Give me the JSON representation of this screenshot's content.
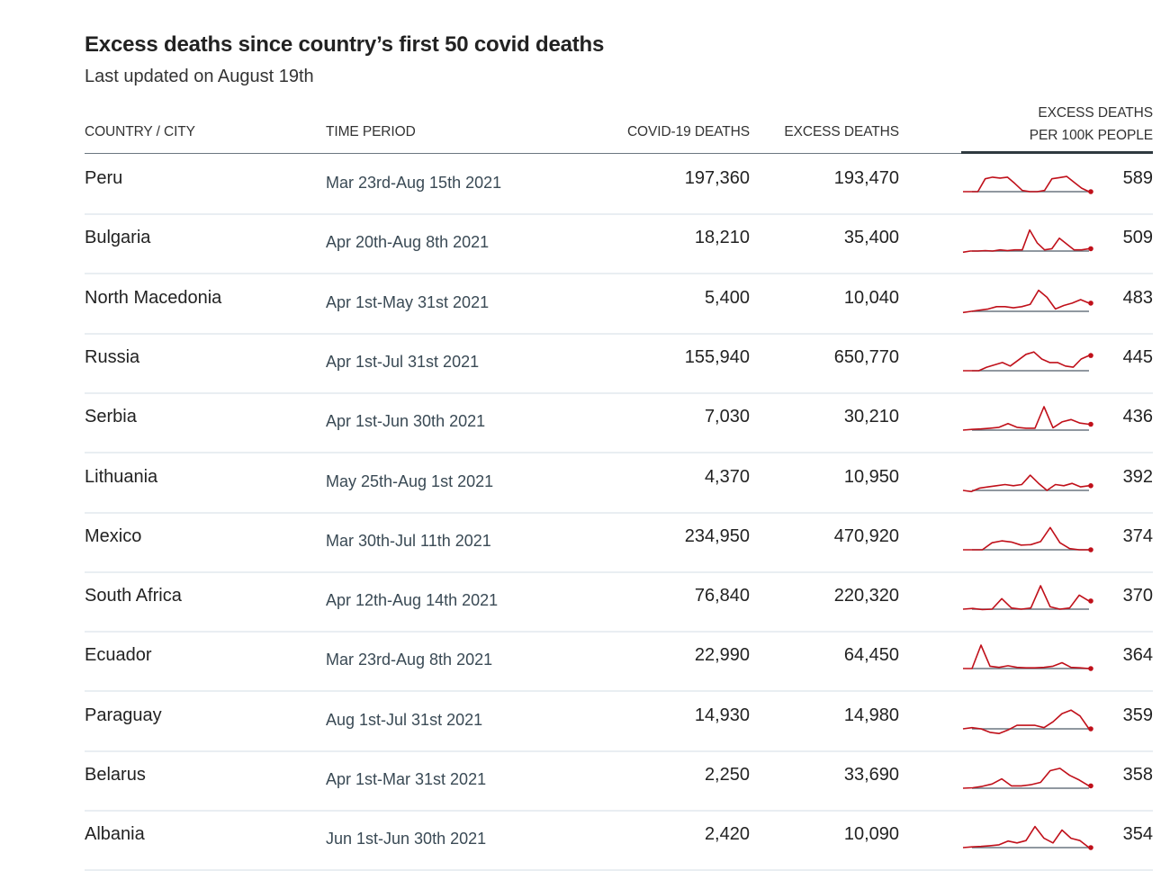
{
  "header": {
    "title": "Excess deaths since country’s first 50 covid deaths",
    "subtitle": "Last updated on August 19th"
  },
  "columns": {
    "country": "COUNTRY / CITY",
    "period": "TIME PERIOD",
    "covid": "COVID-19 DEATHS",
    "excess": "EXCESS DEATHS",
    "per100k_line1": "EXCESS DEATHS",
    "per100k_line2": "PER 100K PEOPLE"
  },
  "colors": {
    "line": "#c0101a",
    "baseline": "#6b7780",
    "rule": "#e9eef2"
  },
  "chart_data": {
    "type": "table",
    "title": "Excess deaths since country’s first 50 covid deaths",
    "subtitle": "Last updated on August 19th",
    "sorted_by": "excess_per_100k",
    "rows": [
      {
        "country": "Peru",
        "period": "Mar 23rd-Aug 15th 2021",
        "covid": "197,360",
        "excess": "193,470",
        "per100k": "589",
        "spark": [
          0,
          0,
          0,
          0.55,
          0.62,
          0.58,
          0.62,
          0.35,
          0.05,
          0,
          0,
          0.05,
          0.55,
          0.6,
          0.65,
          0.4,
          0.15,
          0
        ]
      },
      {
        "country": "Bulgaria",
        "period": "Apr 20th-Aug 8th 2021",
        "covid": "18,210",
        "excess": "35,400",
        "per100k": "509",
        "spark": [
          -0.05,
          0,
          0,
          0.02,
          0,
          0.05,
          0.02,
          0.05,
          0.05,
          0.9,
          0.35,
          0.05,
          0.1,
          0.55,
          0.3,
          0.05,
          0.05,
          0.1
        ]
      },
      {
        "country": "North Macedonia",
        "period": "Apr 1st-May 31st 2021",
        "covid": "5,400",
        "excess": "10,040",
        "per100k": "483",
        "spark": [
          -0.05,
          0,
          0.05,
          0.1,
          0.2,
          0.2,
          0.15,
          0.2,
          0.3,
          0.9,
          0.6,
          0.1,
          0.25,
          0.35,
          0.5,
          0.35
        ]
      },
      {
        "country": "Russia",
        "period": "Apr 1st-Jul 31st 2021",
        "covid": "155,940",
        "excess": "650,770",
        "per100k": "445",
        "spark": [
          0,
          0,
          0,
          0.15,
          0.25,
          0.35,
          0.2,
          0.45,
          0.7,
          0.8,
          0.5,
          0.35,
          0.35,
          0.2,
          0.15,
          0.5,
          0.65
        ]
      },
      {
        "country": "Serbia",
        "period": "Apr 1st-Jun 30th 2021",
        "covid": "7,030",
        "excess": "30,210",
        "per100k": "436",
        "spark": [
          0,
          0.03,
          0.05,
          0.08,
          0.12,
          0.28,
          0.12,
          0.08,
          0.08,
          1,
          0.1,
          0.35,
          0.45,
          0.3,
          0.25
        ]
      },
      {
        "country": "Lithuania",
        "period": "May 25th-Aug 1st 2021",
        "covid": "4,370",
        "excess": "10,950",
        "per100k": "392",
        "spark": [
          0,
          -0.05,
          0.1,
          0.15,
          0.2,
          0.25,
          0.2,
          0.25,
          0.65,
          0.3,
          0,
          0.25,
          0.2,
          0.3,
          0.15,
          0.2
        ]
      },
      {
        "country": "Mexico",
        "period": "Mar 30th-Jul 11th 2021",
        "covid": "234,950",
        "excess": "470,920",
        "per100k": "374",
        "spark": [
          0,
          0,
          0,
          0.3,
          0.38,
          0.33,
          0.2,
          0.22,
          0.35,
          0.95,
          0.3,
          0.05,
          0,
          0
        ]
      },
      {
        "country": "South Africa",
        "period": "Apr 12th-Aug 14th 2021",
        "covid": "76,840",
        "excess": "220,320",
        "per100k": "370",
        "spark": [
          0,
          0.03,
          -0.02,
          0,
          0.45,
          0.05,
          0,
          0.05,
          1,
          0.1,
          0,
          0.05,
          0.6,
          0.35
        ]
      },
      {
        "country": "Ecuador",
        "period": "Mar 23rd-Aug 8th 2021",
        "covid": "22,990",
        "excess": "64,450",
        "per100k": "364",
        "spark": [
          0,
          0,
          1,
          0.1,
          0.05,
          0.12,
          0.05,
          0.03,
          0.03,
          0.05,
          0.1,
          0.25,
          0.05,
          0.03,
          0
        ]
      },
      {
        "country": "Paraguay",
        "period": "Aug 1st-Jul 31st 2021",
        "covid": "14,930",
        "excess": "14,980",
        "per100k": "359",
        "spark": [
          0,
          0.05,
          0,
          -0.15,
          -0.2,
          -0.05,
          0.15,
          0.15,
          0.15,
          0.05,
          0.3,
          0.65,
          0.8,
          0.55,
          0
        ]
      },
      {
        "country": "Belarus",
        "period": "Apr 1st-Mar 31st 2021",
        "covid": "2,250",
        "excess": "33,690",
        "per100k": "358",
        "spark": [
          0,
          0.02,
          0.08,
          0.18,
          0.4,
          0.1,
          0.1,
          0.15,
          0.25,
          0.75,
          0.85,
          0.55,
          0.35,
          0.1
        ]
      },
      {
        "country": "Albania",
        "period": "Jun 1st-Jun 30th 2021",
        "covid": "2,420",
        "excess": "10,090",
        "per100k": "354",
        "spark": [
          0,
          0.03,
          0.05,
          0.08,
          0.12,
          0.28,
          0.2,
          0.3,
          0.9,
          0.4,
          0.2,
          0.75,
          0.4,
          0.3,
          0
        ]
      }
    ]
  }
}
